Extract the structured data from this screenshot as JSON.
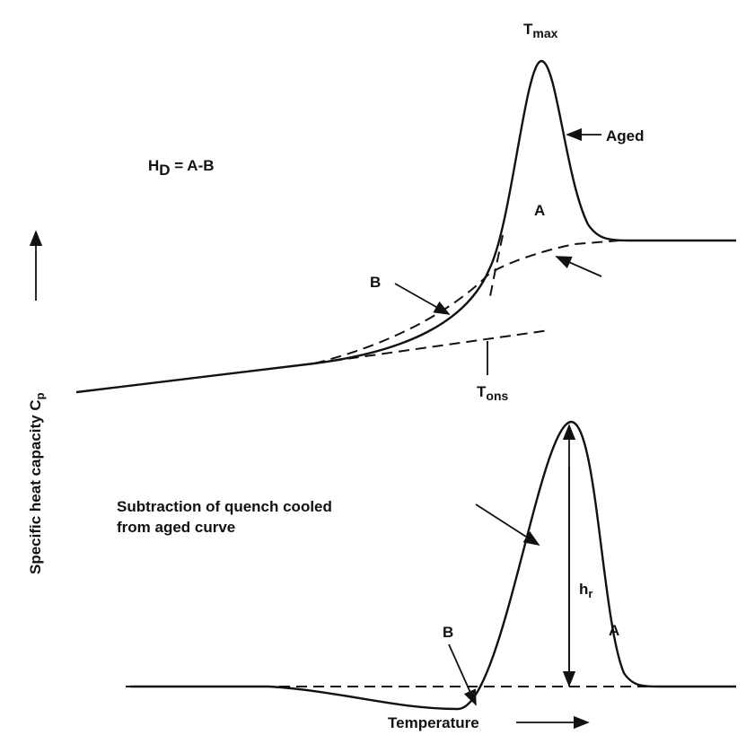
{
  "labels": {
    "t_max": {
      "main": "T",
      "sub": "max"
    },
    "aged": "Aged",
    "hd_formula": {
      "main": "H",
      "sub": "D",
      "rest": " = A-B"
    },
    "top_a": "A",
    "top_b": "B",
    "t_ons": {
      "main": "T",
      "sub": "ons"
    },
    "subtraction": [
      "Subtraction of quench cooled",
      "from aged curve"
    ],
    "h_r": {
      "main": "h",
      "sub": "r"
    },
    "bottom_a": "A",
    "bottom_b": "B",
    "y_axis": {
      "main": "Specific heat capacity C",
      "sub": "p"
    },
    "x_axis": "Temperature"
  }
}
